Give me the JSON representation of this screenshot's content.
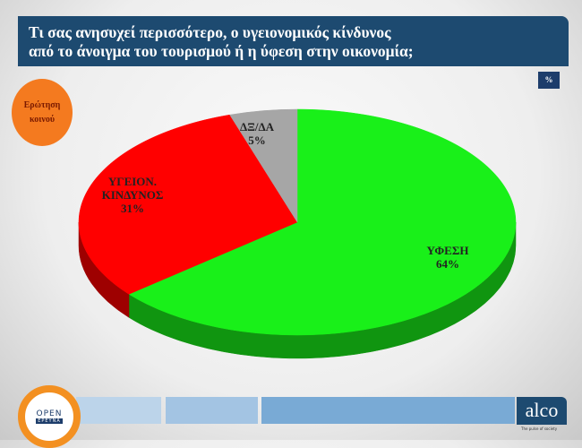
{
  "header": {
    "title_lines": [
      "Τι σας ανησυχεί περισσότερο, ο υγειονομικός κίνδυνος",
      "από το άνοιγμα του τουρισμού ή η ύφεση στην οικονομία;"
    ],
    "unit_badge": "%"
  },
  "badge": {
    "lines": [
      "Ερώτηση",
      "κοινού"
    ],
    "color": "#f47a1f"
  },
  "chart_data": {
    "type": "pie",
    "title": "Τι σας ανησυχεί περισσότερο, ο υγειονομικός κίνδυνος από το άνοιγμα του τουρισμού ή η ύφεση στην οικονομία;",
    "unit": "%",
    "style": "3d",
    "slices": [
      {
        "label": "ΥΦΕΣΗ",
        "value": 64,
        "display": "64%",
        "color": "#19f019"
      },
      {
        "label": "ΥΓΕΙΟΝ. ΚΙΝΔΥΝΟΣ",
        "value": 31,
        "display": "31%",
        "color": "#ff0000"
      },
      {
        "label": "ΔΞ/ΔΑ",
        "value": 5,
        "display": "5%",
        "color": "#a6a6a6"
      }
    ]
  },
  "footer": {
    "open_logo": "OPEN",
    "open_sub": "ΕΡΕΥΝΑ",
    "alco_logo": "alco",
    "alco_tagline": "The pulse of society"
  }
}
